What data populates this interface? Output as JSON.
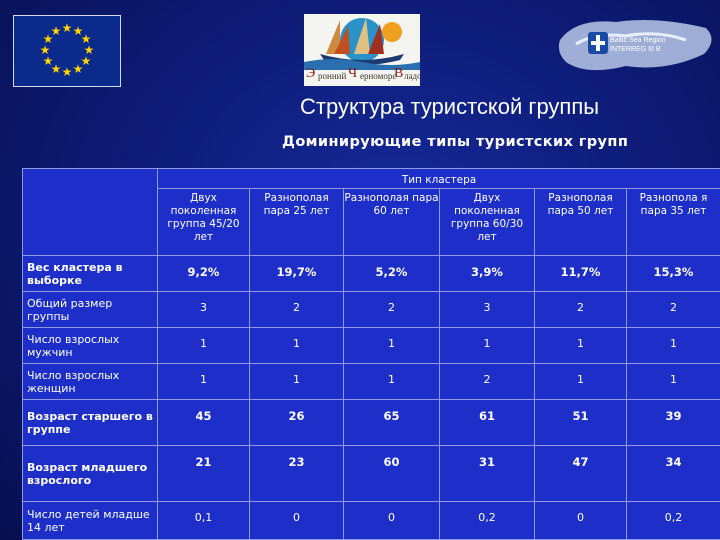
{
  "page": {
    "title": "Структура туристской группы",
    "subtitle": "Доминирующие типы туристских групп"
  },
  "logos": {
    "center_letters": [
      "Э",
      "ронний",
      "Ч",
      "ерноморс",
      "В",
      "ладо"
    ],
    "right_text_lines": [
      "Baltic Sea Region",
      "INTERREG III B"
    ]
  },
  "table": {
    "super_header": "Тип кластера",
    "columns": [
      "Двух поколенная группа 45/20 лет",
      "Разнополая пара 25 лет",
      "Разнополая пара 60 лет",
      "Двух поколенная группа 60/30 лет",
      "Разнополая пара 50 лет",
      "Разнопола я пара 35 лет"
    ],
    "rows": [
      {
        "label": "Вес кластера в выборке",
        "values": [
          "9,2%",
          "19,7%",
          "5,2%",
          "3,9%",
          "11,7%",
          "15,3%"
        ]
      },
      {
        "label": "Общий размер группы",
        "values": [
          "3",
          "2",
          "2",
          "3",
          "2",
          "2"
        ]
      },
      {
        "label": "Число взрослых мужчин",
        "values": [
          "1",
          "1",
          "1",
          "1",
          "1",
          "1"
        ]
      },
      {
        "label": "Число взрослых женщин",
        "values": [
          "1",
          "1",
          "1",
          "2",
          "1",
          "1"
        ]
      },
      {
        "label": "Возраст старшего в группе",
        "values": [
          "45",
          "26",
          "65",
          "61",
          "51",
          "39"
        ]
      },
      {
        "label": "Возраст младшего взрослого",
        "values": [
          "21",
          "23",
          "60",
          "31",
          "47",
          "34"
        ]
      },
      {
        "label": "Число детей младше 14 лет",
        "values": [
          "0,1",
          "0",
          "0",
          "0,2",
          "0",
          "0,2"
        ]
      }
    ]
  },
  "colors": {
    "table_fill": "#1d2fc8",
    "flag_star": "#ffd400"
  }
}
